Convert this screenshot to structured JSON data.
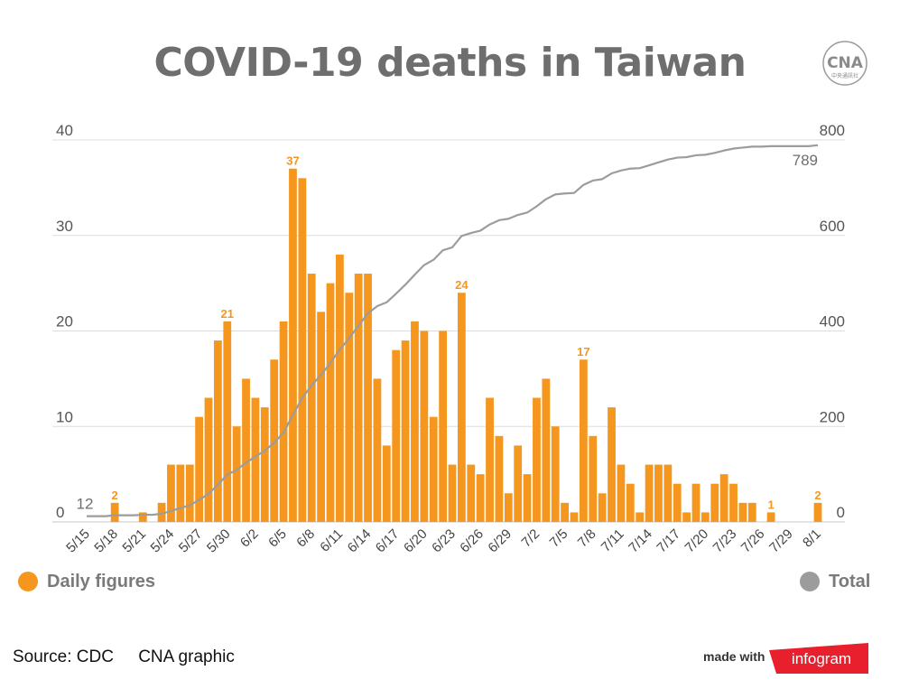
{
  "title": "COVID-19 deaths in Taiwan",
  "logo": {
    "icon": "cna-logo-icon",
    "text": "CNA",
    "subtext": "中央通訊社"
  },
  "colors": {
    "bars": "#f5961e",
    "line": "#9c9c9c",
    "title": "#6e6e6e",
    "grid": "#dddddd",
    "brand": "#e8202e"
  },
  "legend": [
    {
      "label": "Daily figures",
      "color": "#f5961e"
    },
    {
      "label": "Total",
      "color": "#9c9c9c"
    }
  ],
  "footer": {
    "source": "Source: CDC",
    "credit": "CNA graphic",
    "made_with": "made with",
    "brand": "infogram"
  },
  "chart_data": {
    "type": "bar",
    "title": "COVID-19 deaths in Taiwan",
    "grid": true,
    "legend_position": "bottom",
    "left_axis": {
      "ylim": [
        0,
        40
      ],
      "ticks": [
        0,
        10,
        20,
        30,
        40
      ]
    },
    "right_axis": {
      "ylim": [
        0,
        800
      ],
      "ticks": [
        0,
        200,
        400,
        600,
        800
      ]
    },
    "x_tick_labels": [
      "5/15",
      "5/18",
      "5/21",
      "5/24",
      "5/27",
      "5/30",
      "6/2",
      "6/5",
      "6/8",
      "6/11",
      "6/14",
      "6/17",
      "6/20",
      "6/23",
      "6/26",
      "6/29",
      "7/2",
      "7/5",
      "7/8",
      "7/11",
      "7/14",
      "7/17",
      "7/20",
      "7/23",
      "7/26",
      "7/29",
      "8/1"
    ],
    "categories": [
      "5/15",
      "5/16",
      "5/17",
      "5/18",
      "5/19",
      "5/20",
      "5/21",
      "5/22",
      "5/23",
      "5/24",
      "5/25",
      "5/26",
      "5/27",
      "5/28",
      "5/29",
      "5/30",
      "5/31",
      "6/1",
      "6/2",
      "6/3",
      "6/4",
      "6/5",
      "6/6",
      "6/7",
      "6/8",
      "6/9",
      "6/10",
      "6/11",
      "6/12",
      "6/13",
      "6/14",
      "6/15",
      "6/16",
      "6/17",
      "6/18",
      "6/19",
      "6/20",
      "6/21",
      "6/22",
      "6/23",
      "6/24",
      "6/25",
      "6/26",
      "6/27",
      "6/28",
      "6/29",
      "6/30",
      "7/1",
      "7/2",
      "7/3",
      "7/4",
      "7/5",
      "7/6",
      "7/7",
      "7/8",
      "7/9",
      "7/10",
      "7/11",
      "7/12",
      "7/13",
      "7/14",
      "7/15",
      "7/16",
      "7/17",
      "7/18",
      "7/19",
      "7/20",
      "7/21",
      "7/22",
      "7/23",
      "7/24",
      "7/25",
      "7/26",
      "7/27",
      "7/28",
      "7/29",
      "7/30",
      "7/31",
      "8/1"
    ],
    "series": [
      {
        "name": "Daily figures",
        "axis": "left",
        "type": "bar",
        "values": [
          0,
          0,
          0,
          2,
          0,
          0,
          1,
          0,
          2,
          6,
          6,
          6,
          11,
          13,
          19,
          21,
          10,
          15,
          13,
          12,
          17,
          21,
          37,
          36,
          26,
          22,
          25,
          28,
          24,
          26,
          26,
          15,
          8,
          18,
          19,
          21,
          20,
          11,
          20,
          6,
          24,
          6,
          5,
          13,
          9,
          3,
          8,
          5,
          13,
          15,
          10,
          2,
          1,
          17,
          9,
          3,
          12,
          6,
          4,
          1,
          6,
          6,
          6,
          4,
          1,
          4,
          1,
          4,
          5,
          4,
          2,
          2,
          0,
          1,
          0,
          0,
          0,
          0,
          2
        ]
      },
      {
        "name": "Total",
        "axis": "right",
        "type": "line",
        "values": [
          12,
          12,
          12,
          14,
          14,
          14,
          15,
          15,
          17,
          23,
          29,
          35,
          46,
          59,
          78,
          99,
          109,
          124,
          137,
          149,
          166,
          187,
          224,
          260,
          286,
          308,
          333,
          361,
          385,
          411,
          437,
          452,
          460,
          478,
          497,
          518,
          538,
          549,
          569,
          575,
          599,
          605,
          610,
          623,
          632,
          635,
          643,
          648,
          661,
          676,
          686,
          688,
          689,
          706,
          715,
          718,
          730,
          736,
          740,
          741,
          747,
          753,
          759,
          763,
          764,
          768,
          769,
          773,
          778,
          782,
          784,
          786,
          786,
          787,
          787,
          787,
          787,
          787,
          789
        ]
      }
    ],
    "value_labels": [
      {
        "category": "5/18",
        "value": 2
      },
      {
        "category": "5/30",
        "value": 21
      },
      {
        "category": "6/6",
        "value": 37
      },
      {
        "category": "6/24",
        "value": 24
      },
      {
        "category": "7/7",
        "value": 17
      },
      {
        "category": "7/27",
        "value": 1
      },
      {
        "category": "8/1",
        "value": 2
      }
    ],
    "total_start_label": "12",
    "total_end_label": "789"
  }
}
